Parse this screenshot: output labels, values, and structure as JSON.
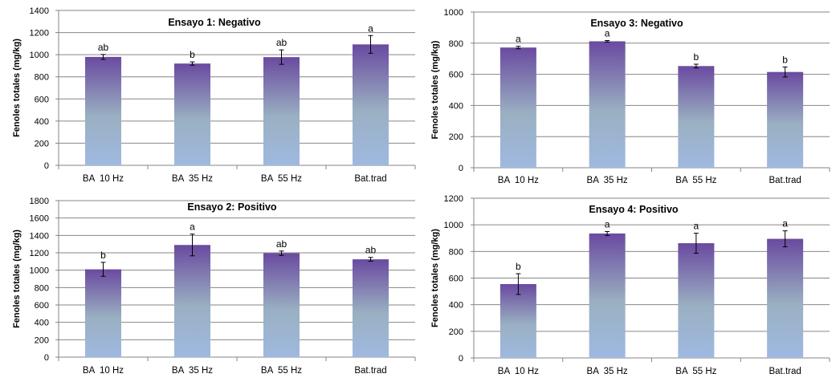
{
  "chart_data": [
    {
      "type": "bar",
      "title": "Ensayo 1: Negativo",
      "ylabel": "Fenoles totales (mg/kg)",
      "xlabel": "",
      "categories": [
        "BA  10 Hz",
        "BA  35 Hz",
        "BA  55 Hz",
        "Bat.trad"
      ],
      "values": [
        980,
        920,
        978,
        1093
      ],
      "errors": [
        22,
        15,
        65,
        80
      ],
      "labels": [
        "ab",
        "b",
        "ab",
        "a"
      ],
      "ylim": [
        0,
        1400
      ],
      "ystep": 200,
      "ticks": [
        "0",
        "200",
        "400",
        "600",
        "800",
        "1000",
        "1200",
        "1400"
      ],
      "grid": true
    },
    {
      "type": "bar",
      "title": "Ensayo 3: Negativo",
      "ylabel": "Fenoles totales (mg/kg)",
      "xlabel": "",
      "categories": [
        "BA  10 Hz",
        "BA  35 Hz",
        "BA  55 Hz",
        "Bat.trad"
      ],
      "values": [
        772,
        812,
        653,
        615
      ],
      "errors": [
        8,
        5,
        12,
        32
      ],
      "labels": [
        "a",
        "a",
        "b",
        "b"
      ],
      "ylim": [
        0,
        1000
      ],
      "ystep": 200,
      "ticks": [
        "0",
        "200",
        "400",
        "600",
        "800",
        "1000"
      ],
      "grid": true
    },
    {
      "type": "bar",
      "title": "Ensayo 2: Positivo",
      "ylabel": "Fenoles totales (mg/kg)",
      "xlabel": "",
      "categories": [
        "BA  10 Hz",
        "BA  35 Hz",
        "BA  55 Hz",
        "Bat.trad"
      ],
      "values": [
        1010,
        1290,
        1195,
        1125
      ],
      "errors": [
        80,
        125,
        25,
        22
      ],
      "labels": [
        "b",
        "a",
        "ab",
        "ab"
      ],
      "ylim": [
        0,
        1800
      ],
      "ystep": 200,
      "ticks": [
        "0",
        "200",
        "400",
        "600",
        "800",
        "1000",
        "1200",
        "1400",
        "1600",
        "1800"
      ],
      "grid": true
    },
    {
      "type": "bar",
      "title": "Ensayo 4: Positivo",
      "ylabel": "Fenoles totales (mg/kg)",
      "xlabel": "",
      "categories": [
        "BA  10 Hz",
        "BA  35 Hz",
        "BA  55 Hz",
        "Bat.trad"
      ],
      "values": [
        555,
        935,
        862,
        895
      ],
      "errors": [
        78,
        15,
        75,
        60
      ],
      "labels": [
        "b",
        "a",
        "a",
        "a"
      ],
      "ylim": [
        0,
        1200
      ],
      "ystep": 200,
      "ticks": [
        "0",
        "200",
        "400",
        "600",
        "800",
        "1000",
        "1200"
      ],
      "grid": true
    }
  ],
  "colors": {
    "bar_top": "#6a4aa0",
    "bar_mid": "#9ab0c2",
    "bar_bottom": "#9fb9e0",
    "grid": "#868686"
  }
}
